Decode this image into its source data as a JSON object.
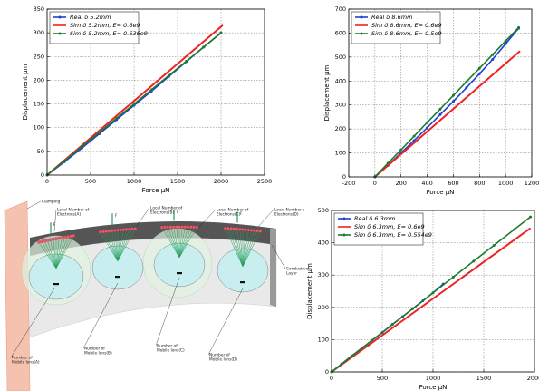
{
  "chart_data": [
    {
      "type": "line",
      "xlabel": "Force μN",
      "ylabel": "Displacement μm",
      "xlim": [
        0,
        2500
      ],
      "xticks": [
        0,
        500,
        1000,
        1500,
        2000,
        2500
      ],
      "ylim": [
        0,
        350
      ],
      "yticks": [
        0,
        50,
        100,
        150,
        200,
        250,
        300,
        350
      ],
      "grid": true,
      "legend": "upper left",
      "series": [
        {
          "name": "Real δ 5.2mm",
          "color": "#1f3fd6",
          "markers": true,
          "x": [
            0,
            200,
            400,
            600,
            800,
            1000,
            1200,
            1400,
            1600,
            1800,
            2000
          ],
          "values": [
            0,
            28,
            57,
            87,
            117,
            147,
            177,
            208,
            239,
            270,
            300
          ]
        },
        {
          "name": "Sim δ 5.2mm, E= 0.6e9",
          "color": "#ee2222",
          "markers": false,
          "x": [
            0,
            2020
          ],
          "values": [
            0,
            316
          ]
        },
        {
          "name": "Sim δ 5.2mm, E= 0.636e9",
          "color": "#1e7a2e",
          "markers": true,
          "x": [
            0,
            200,
            400,
            600,
            800,
            1000,
            1200,
            1400,
            1600,
            1800,
            2000
          ],
          "values": [
            0,
            30,
            60,
            90,
            120,
            150,
            180,
            210,
            240,
            270,
            300
          ]
        }
      ]
    },
    {
      "type": "line",
      "xlabel": "Force μN",
      "ylabel": "Displacement μm",
      "xlim": [
        -200,
        1200
      ],
      "xticks": [
        -200,
        0,
        200,
        400,
        600,
        800,
        1000,
        1200
      ],
      "ylim": [
        0,
        700
      ],
      "yticks": [
        0,
        100,
        200,
        300,
        400,
        500,
        600,
        700
      ],
      "grid": true,
      "legend": "upper left",
      "series": [
        {
          "name": "Real δ 8.6mm",
          "color": "#1f3fd6",
          "markers": true,
          "x": [
            0,
            100,
            200,
            300,
            400,
            500,
            600,
            700,
            800,
            900,
            1000,
            1100
          ],
          "values": [
            0,
            48,
            100,
            152,
            205,
            260,
            315,
            372,
            430,
            490,
            555,
            620
          ]
        },
        {
          "name": "Sim δ 8.6mm, E= 0.6e9",
          "color": "#ee2222",
          "markers": false,
          "x": [
            0,
            1110
          ],
          "values": [
            0,
            525
          ]
        },
        {
          "name": "Sim δ 8.6mm, E= 0.5e9",
          "color": "#1e7a2e",
          "markers": true,
          "x": [
            0,
            100,
            200,
            300,
            400,
            500,
            600,
            700,
            800,
            900,
            1000,
            1100
          ],
          "values": [
            0,
            57,
            113,
            170,
            227,
            283,
            340,
            397,
            453,
            510,
            567,
            623
          ]
        }
      ]
    },
    {
      "type": "line",
      "xlabel": "Force μN",
      "ylabel": "Displacement μm",
      "xlim": [
        0,
        2000
      ],
      "xticks": [
        0,
        500,
        1000,
        1500,
        2000
      ],
      "ylim": [
        0,
        500
      ],
      "yticks": [
        0,
        100,
        200,
        300,
        400,
        500
      ],
      "grid": true,
      "legend": "upper left",
      "series": [
        {
          "name": "Real δ 6.3mm",
          "color": "#1f3fd6",
          "markers": true,
          "x": [
            0,
            100,
            200,
            300,
            400,
            500,
            600,
            700,
            800,
            900,
            1000,
            1100
          ],
          "values": [
            0,
            25,
            50,
            74,
            98,
            122,
            147,
            171,
            196,
            220,
            245,
            272
          ]
        },
        {
          "name": "Sim δ 6.3mm, E= 0.6e9",
          "color": "#ee2222",
          "markers": false,
          "x": [
            0,
            1960
          ],
          "values": [
            0,
            445
          ]
        },
        {
          "name": "Sim δ 6.3mm, E= 0.554e9",
          "color": "#1e7a2e",
          "markers": true,
          "x": [
            0,
            200,
            400,
            600,
            800,
            1000,
            1200,
            1400,
            1600,
            1800,
            1960
          ],
          "values": [
            0,
            49,
            98,
            147,
            196,
            245,
            294,
            343,
            392,
            441,
            480
          ]
        }
      ]
    }
  ],
  "diagram": {
    "labels": [
      {
        "lines": [
          "Clamping"
        ]
      },
      {
        "lines": [
          "Local Number of",
          "Electrons(A)"
        ]
      },
      {
        "lines": [
          "Local Number of",
          "Electrons(B)"
        ]
      },
      {
        "lines": [
          "Local Number of",
          "Electrons(C)"
        ]
      },
      {
        "lines": [
          "Local Number s",
          "Electrons(D)"
        ]
      },
      {
        "lines": [
          "Conductive",
          "Layer"
        ]
      },
      {
        "lines": [
          "Number of",
          "Mobile Ions(A)"
        ]
      },
      {
        "lines": [
          "Number of",
          "Mobile Ions(B)"
        ]
      },
      {
        "lines": [
          "Number of",
          "Mobile Ions(C)"
        ]
      },
      {
        "lines": [
          "Number of",
          "Mobile Ions(D)"
        ]
      }
    ],
    "force_label": "F"
  }
}
